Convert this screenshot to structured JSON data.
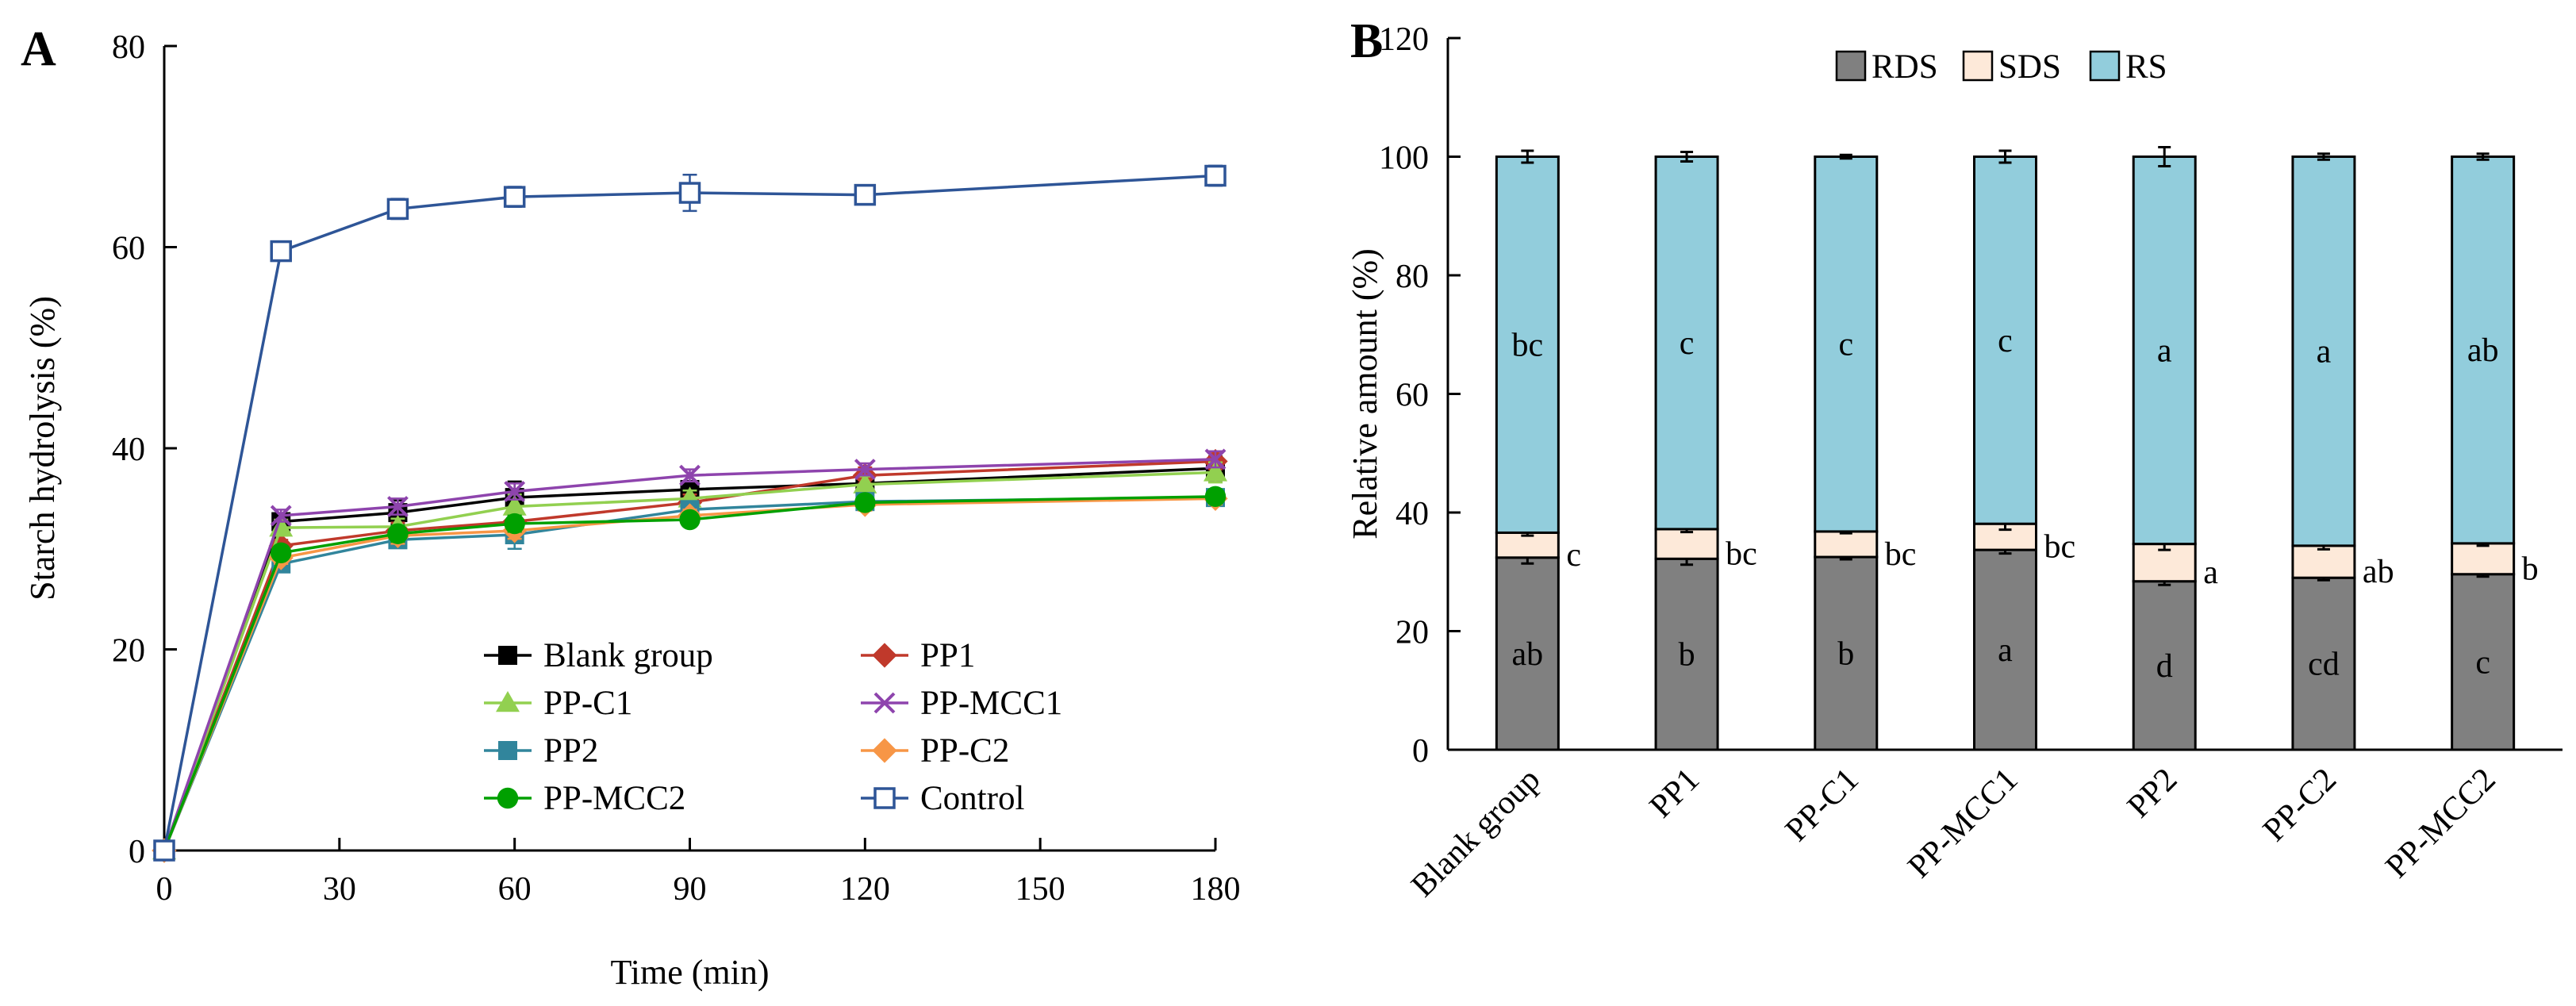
{
  "panel_a": {
    "label": "A",
    "chart_data": {
      "type": "line",
      "xlabel": "Time  (min)",
      "ylabel": "Starch hydrolysis  (%)",
      "xlim": [
        0,
        180
      ],
      "ylim": [
        0,
        80
      ],
      "xticks": [
        0,
        30,
        60,
        90,
        120,
        150,
        180
      ],
      "yticks": [
        0,
        20,
        40,
        60,
        80
      ],
      "grid": false,
      "legend_position": "bottom-right",
      "x": [
        0,
        20,
        40,
        60,
        90,
        120,
        180
      ],
      "series": [
        {
          "name": "Blank group",
          "color": "#000000",
          "marker": "square",
          "values": [
            0,
            32.7,
            33.6,
            35.1,
            35.9,
            36.5,
            38.0
          ],
          "errors": [
            0,
            0.8,
            1.2,
            1.6,
            0.8,
            0.8,
            1.2
          ]
        },
        {
          "name": "PP1",
          "color": "#c0392b",
          "marker": "diamond",
          "values": [
            0,
            30.3,
            31.8,
            32.7,
            34.6,
            37.3,
            38.7
          ],
          "errors": [
            0,
            0.6,
            0.8,
            0.8,
            0.8,
            0.8,
            0.8
          ]
        },
        {
          "name": "PP-C1",
          "color": "#92d050",
          "marker": "triangle",
          "values": [
            0,
            32.1,
            32.2,
            34.2,
            35.0,
            36.4,
            37.6
          ],
          "errors": [
            0,
            0.8,
            0.8,
            1.2,
            0.8,
            0.8,
            1.0
          ]
        },
        {
          "name": "PP-MCC1",
          "color": "#8e44ad",
          "marker": "x",
          "values": [
            0,
            33.3,
            34.2,
            35.7,
            37.3,
            37.9,
            38.9
          ],
          "errors": [
            0,
            0.6,
            0.8,
            0.8,
            0.6,
            0.6,
            0.8
          ]
        },
        {
          "name": "PP2",
          "color": "#31859c",
          "marker": "square",
          "values": [
            0,
            28.5,
            30.9,
            31.4,
            33.9,
            34.7,
            35.1
          ],
          "errors": [
            0,
            0.8,
            0.8,
            1.4,
            0.8,
            0.8,
            0.8
          ]
        },
        {
          "name": "PP-C2",
          "color": "#f79646",
          "marker": "diamond",
          "values": [
            0,
            29.1,
            31.3,
            31.8,
            33.3,
            34.4,
            35.0
          ],
          "errors": [
            0,
            0.6,
            0.8,
            0.8,
            0.6,
            0.6,
            0.6
          ]
        },
        {
          "name": "PP-MCC2",
          "color": "#00a000",
          "marker": "circle",
          "values": [
            0,
            29.6,
            31.5,
            32.5,
            32.9,
            34.6,
            35.2
          ],
          "errors": [
            0,
            0.6,
            0.8,
            0.8,
            0.6,
            0.6,
            0.6
          ]
        },
        {
          "name": "Control",
          "color": "#2e5597",
          "marker": "open-square",
          "values": [
            0,
            59.6,
            63.8,
            65.0,
            65.4,
            65.2,
            67.1
          ],
          "errors": [
            0,
            0.5,
            1.0,
            1.0,
            1.8,
            0.8,
            1.0
          ]
        }
      ]
    }
  },
  "panel_b": {
    "label": "B",
    "chart_data": {
      "type": "bar",
      "stacked": true,
      "ylabel": "Relative amount (%)",
      "ylim": [
        0,
        120
      ],
      "yticks": [
        0,
        20,
        40,
        60,
        80,
        100,
        120
      ],
      "grid": false,
      "legend_position": "top-center",
      "categories": [
        "Blank group",
        "PP1",
        "PP-C1",
        "PP-MCC1",
        "PP2",
        "PP-C2",
        "PP-MCC2"
      ],
      "series": [
        {
          "name": "RDS",
          "color": "#808080",
          "values": [
            32.4,
            32.2,
            32.5,
            33.7,
            28.4,
            29.0,
            29.6
          ],
          "errors": [
            1.0,
            1.0,
            0.4,
            0.6,
            0.6,
            0.4,
            0.4
          ],
          "letters": [
            "ab",
            "b",
            "b",
            "a",
            "d",
            "cd",
            "c"
          ]
        },
        {
          "name": "SDS",
          "color": "#fde9d9",
          "values": [
            4.2,
            5.0,
            4.3,
            4.4,
            6.3,
            5.4,
            5.2
          ],
          "errors": [
            0.5,
            0.5,
            0.3,
            1.0,
            1.0,
            0.6,
            0.4
          ],
          "letters": [
            "c",
            "bc",
            "bc",
            "bc",
            "a",
            "ab",
            "b"
          ]
        },
        {
          "name": "RS",
          "color": "#92cddc",
          "values": [
            63.4,
            62.8,
            63.2,
            61.9,
            65.3,
            65.6,
            65.2
          ],
          "errors": [
            1.0,
            0.8,
            0.3,
            1.0,
            1.6,
            0.5,
            0.5
          ],
          "letters": [
            "bc",
            "c",
            "c",
            "c",
            "a",
            "a",
            "ab"
          ]
        }
      ]
    }
  }
}
